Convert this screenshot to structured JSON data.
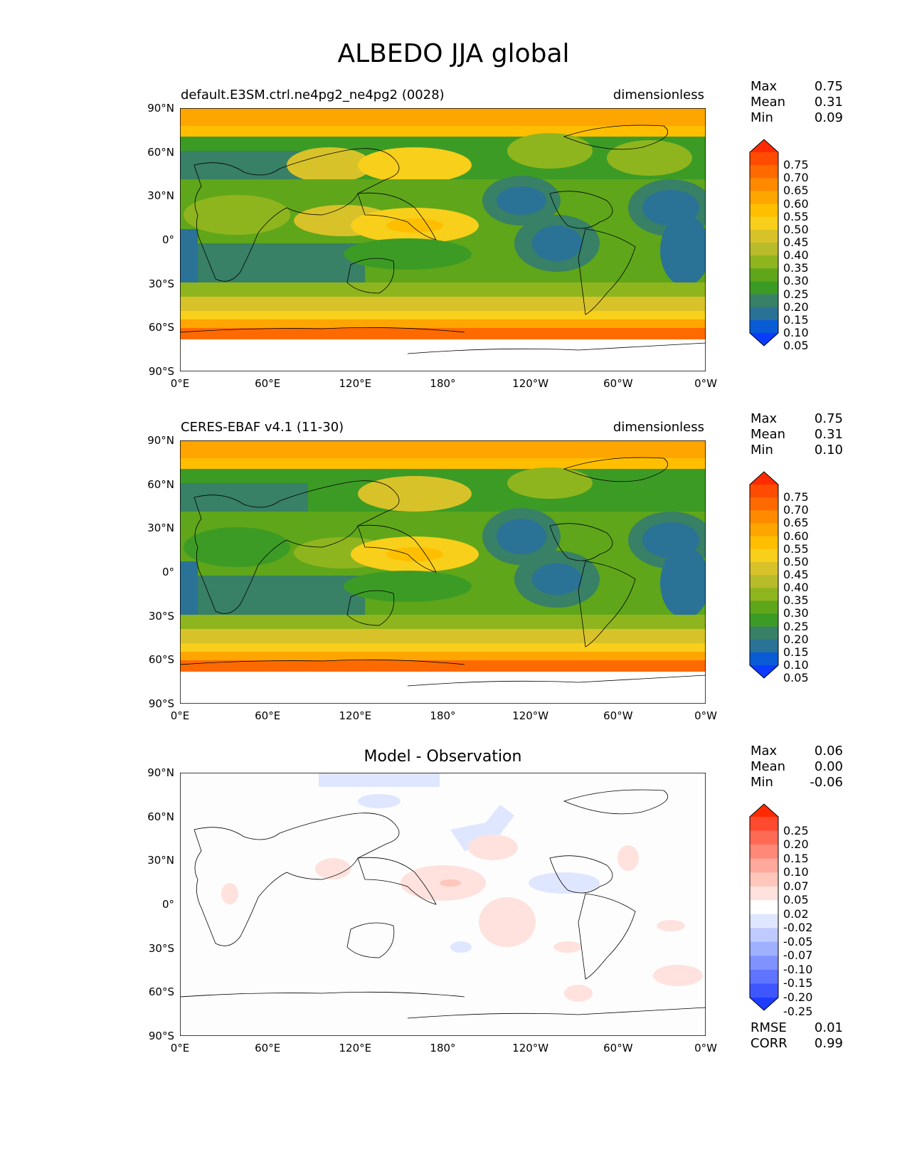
{
  "title": "ALBEDO JJA global",
  "lat_ticks": [
    "90°N",
    "60°N",
    "30°N",
    "0°",
    "30°S",
    "60°S",
    "90°S"
  ],
  "lon_ticks": [
    "0°E",
    "60°E",
    "120°E",
    "180°",
    "120°W",
    "60°W",
    "0°W"
  ],
  "panels": [
    {
      "id": "model",
      "left_label": "default.E3SM.ctrl.ne4pg2_ne4pg2 (0028)",
      "right_label": "dimensionless",
      "center_label": "",
      "stats": [
        {
          "k": "Max",
          "v": "0.75"
        },
        {
          "k": "Mean",
          "v": "0.31"
        },
        {
          "k": "Min",
          "v": "0.09"
        }
      ],
      "colorbar": {
        "labels": [
          "0.75",
          "0.70",
          "0.65",
          "0.60",
          "0.55",
          "0.50",
          "0.45",
          "0.40",
          "0.35",
          "0.30",
          "0.25",
          "0.20",
          "0.15",
          "0.10",
          "0.05"
        ],
        "colors": [
          "#ff2a00",
          "#ff4c00",
          "#ff6a00",
          "#ff8a00",
          "#ffa500",
          "#ffbf00",
          "#f8cf1a",
          "#d8c22a",
          "#b8bb2a",
          "#8fb51e",
          "#5fa61a",
          "#3c9b25",
          "#388066",
          "#2a7296",
          "#0a5bd6",
          "#0a3cff"
        ]
      },
      "footer": []
    },
    {
      "id": "obs",
      "left_label": "CERES-EBAF v4.1 (11-30)",
      "right_label": "dimensionless",
      "center_label": "",
      "stats": [
        {
          "k": "Max",
          "v": "0.75"
        },
        {
          "k": "Mean",
          "v": "0.31"
        },
        {
          "k": "Min",
          "v": "0.10"
        }
      ],
      "colorbar": {
        "labels": [
          "0.75",
          "0.70",
          "0.65",
          "0.60",
          "0.55",
          "0.50",
          "0.45",
          "0.40",
          "0.35",
          "0.30",
          "0.25",
          "0.20",
          "0.15",
          "0.10",
          "0.05"
        ],
        "colors": [
          "#ff2a00",
          "#ff4c00",
          "#ff6a00",
          "#ff8a00",
          "#ffa500",
          "#ffbf00",
          "#f8cf1a",
          "#d8c22a",
          "#b8bb2a",
          "#8fb51e",
          "#5fa61a",
          "#3c9b25",
          "#388066",
          "#2a7296",
          "#0a5bd6",
          "#0a3cff"
        ]
      },
      "footer": []
    },
    {
      "id": "diff",
      "left_label": "",
      "right_label": "",
      "center_label": "Model - Observation",
      "stats": [
        {
          "k": "Max",
          "v": "0.06"
        },
        {
          "k": "Mean",
          "v": "0.00"
        },
        {
          "k": "Min",
          "v": "-0.06"
        }
      ],
      "colorbar": {
        "labels": [
          "0.25",
          "0.20",
          "0.15",
          "0.10",
          "0.07",
          "0.05",
          "0.02",
          "-0.02",
          "-0.05",
          "-0.07",
          "-0.10",
          "-0.15",
          "-0.20",
          "-0.25"
        ],
        "colors": [
          "#ff2a00",
          "#ff4a30",
          "#ff6a55",
          "#ff8878",
          "#ffa89c",
          "#ffc6bc",
          "#ffe2dd",
          "#ffffff",
          "#dfe6ff",
          "#bfcaff",
          "#9fb0ff",
          "#7f92ff",
          "#5f74ff",
          "#3f56ff",
          "#1f3cff"
        ]
      },
      "footer": [
        {
          "k": "RMSE",
          "v": "0.01"
        },
        {
          "k": "CORR",
          "v": "0.99"
        }
      ]
    }
  ]
}
